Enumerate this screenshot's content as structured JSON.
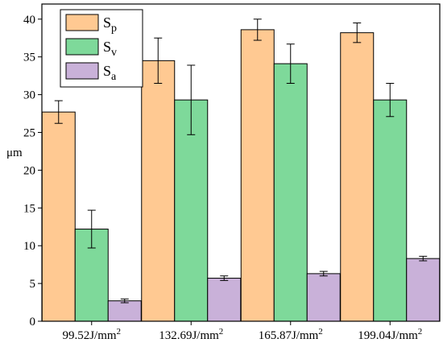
{
  "chart_data": {
    "type": "bar",
    "title": "",
    "xlabel": "",
    "ylabel": "μm",
    "ylim": [
      0,
      42
    ],
    "yticks": [
      0,
      5,
      10,
      15,
      20,
      25,
      30,
      35,
      40
    ],
    "categories": [
      "99.52J/mm",
      "132.69J/mm",
      "165.87J/mm",
      "199.04J/mm"
    ],
    "category_superscript": "2",
    "grid": false,
    "legend_position": "top-left",
    "series": [
      {
        "name": "S",
        "subscript": "p",
        "color": "#FFC992",
        "values": [
          27.7,
          34.5,
          38.6,
          38.2
        ],
        "errors": [
          1.5,
          3.0,
          1.4,
          1.3
        ]
      },
      {
        "name": "S",
        "subscript": "v",
        "color": "#7ED99A",
        "values": [
          12.2,
          29.3,
          34.1,
          29.3
        ],
        "errors": [
          2.5,
          4.6,
          2.6,
          2.2
        ]
      },
      {
        "name": "S",
        "subscript": "a",
        "color": "#C9B1D9",
        "values": [
          2.7,
          5.7,
          6.3,
          8.3
        ],
        "errors": [
          0.25,
          0.3,
          0.3,
          0.3
        ]
      }
    ]
  }
}
